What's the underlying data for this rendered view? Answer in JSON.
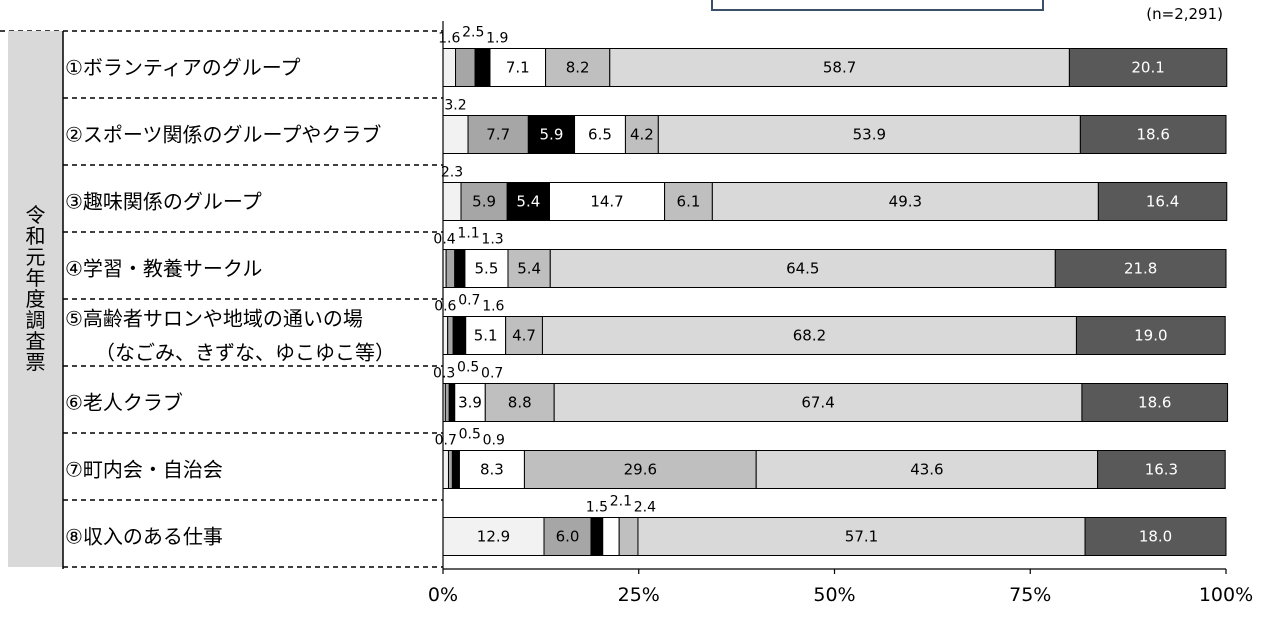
{
  "chart_data": {
    "type": "bar",
    "orientation": "horizontal",
    "stacked": "100%",
    "sample_note": "(n=2,291)",
    "group_label": "令和元年度調査票",
    "x_ticks": [
      "0%",
      "25%",
      "50%",
      "75%",
      "100%"
    ],
    "xlim": [
      0,
      100
    ],
    "categories": [
      [
        "①ボランティアのグループ"
      ],
      [
        "②スポーツ関係のグループやクラブ"
      ],
      [
        "③趣味関係のグループ"
      ],
      [
        "④学習・教養サークル"
      ],
      [
        "⑤高齢者サロンや地域の通いの場",
        "（なごみ、きずな、ゆこゆこ等）"
      ],
      [
        "⑥老人クラブ"
      ],
      [
        "⑦町内会・自治会"
      ],
      [
        "⑧収入のある仕事"
      ]
    ],
    "series_colors": [
      "#f2f2f2",
      "#a6a6a6",
      "#000000",
      "#ffffff",
      "#bfbfbf",
      "#d9d9d9",
      "#595959"
    ],
    "series_text_colors": [
      "#000000",
      "#000000",
      "#ffffff",
      "#000000",
      "#000000",
      "#000000",
      "#ffffff"
    ],
    "values": [
      [
        1.6,
        2.5,
        1.9,
        7.1,
        8.2,
        58.7,
        20.1
      ],
      [
        3.2,
        7.7,
        5.9,
        6.5,
        4.2,
        53.9,
        18.6
      ],
      [
        2.3,
        5.9,
        5.4,
        14.7,
        6.1,
        49.3,
        16.4
      ],
      [
        0.4,
        1.1,
        1.3,
        5.5,
        5.4,
        64.5,
        21.8
      ],
      [
        0.6,
        0.7,
        1.6,
        5.1,
        4.7,
        68.2,
        19.0
      ],
      [
        0.3,
        0.5,
        0.7,
        3.9,
        8.8,
        67.4,
        18.6
      ],
      [
        0.7,
        0.5,
        0.9,
        8.3,
        29.6,
        43.6,
        16.3
      ],
      [
        12.9,
        6.0,
        1.5,
        2.1,
        2.4,
        57.1,
        18.0
      ]
    ],
    "grid": false,
    "legend": "none"
  }
}
